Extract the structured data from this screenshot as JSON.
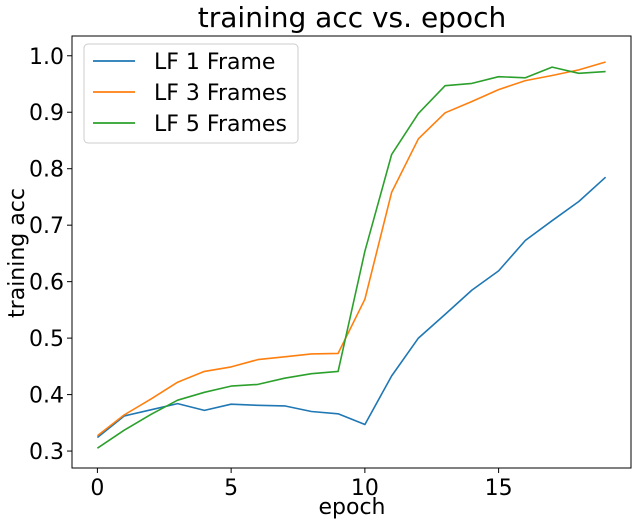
{
  "chart_data": {
    "type": "line",
    "title": "training acc vs. epoch",
    "xlabel": "epoch",
    "ylabel": "training acc",
    "xlim": [
      -0.95,
      19.95
    ],
    "ylim": [
      0.27,
      1.035
    ],
    "xticks": [
      0,
      5,
      10,
      15
    ],
    "yticks": [
      0.3,
      0.4,
      0.5,
      0.6,
      0.7,
      0.8,
      0.9,
      1.0
    ],
    "ytick_labels": [
      "0.3",
      "0.4",
      "0.5",
      "0.6",
      "0.7",
      "0.8",
      "0.9",
      "1.0"
    ],
    "grid": false,
    "legend_position": "top-left",
    "x": [
      0,
      1,
      2,
      3,
      4,
      5,
      6,
      7,
      8,
      9,
      10,
      11,
      12,
      13,
      14,
      15,
      16,
      17,
      18,
      19
    ],
    "series": [
      {
        "name": "LF 1 Frame",
        "color": "#1f77b4",
        "values": [
          0.324,
          0.362,
          0.373,
          0.384,
          0.372,
          0.383,
          0.381,
          0.38,
          0.37,
          0.366,
          0.347,
          0.433,
          0.5,
          0.542,
          0.585,
          0.619,
          0.673,
          0.708,
          0.742,
          0.785
        ]
      },
      {
        "name": "LF 3 Frames",
        "color": "#ff7f0e",
        "values": [
          0.327,
          0.364,
          0.392,
          0.422,
          0.441,
          0.449,
          0.462,
          0.467,
          0.472,
          0.473,
          0.569,
          0.758,
          0.853,
          0.899,
          0.919,
          0.94,
          0.956,
          0.965,
          0.975,
          0.989
        ]
      },
      {
        "name": "LF 5 Frames",
        "color": "#2ca02c",
        "values": [
          0.305,
          0.337,
          0.365,
          0.39,
          0.404,
          0.415,
          0.418,
          0.429,
          0.437,
          0.441,
          0.654,
          0.825,
          0.898,
          0.947,
          0.951,
          0.963,
          0.961,
          0.98,
          0.969,
          0.972
        ]
      }
    ]
  }
}
